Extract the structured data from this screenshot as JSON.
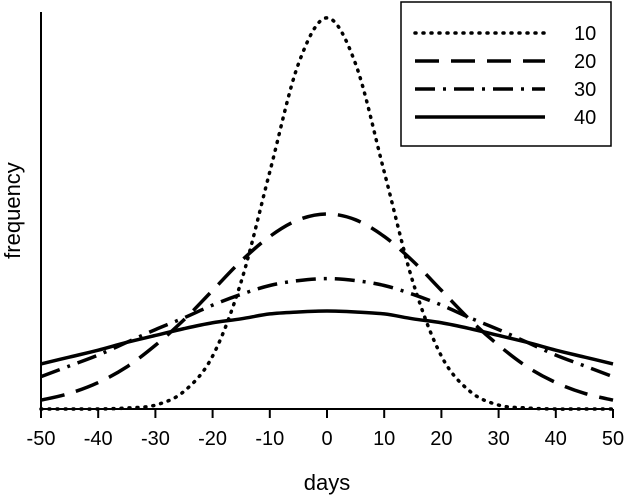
{
  "chart_data": {
    "type": "line",
    "title": "",
    "xlabel": "days",
    "ylabel": "frequency",
    "xlim": [
      -50,
      50
    ],
    "xticks": [
      -50,
      -40,
      -30,
      -20,
      -10,
      0,
      10,
      20,
      30,
      40,
      50
    ],
    "ylim": [
      0,
      0.0405
    ],
    "yticks_shown": false,
    "grid": false,
    "legend": "top-right",
    "x": [
      -50,
      -45,
      -40,
      -35,
      -30,
      -25,
      -20,
      -15,
      -10,
      -5,
      0,
      5,
      10,
      15,
      20,
      25,
      30,
      35,
      40,
      45,
      50
    ],
    "series": [
      {
        "name": "10",
        "style": "dotted",
        "values": [
          0.0,
          0.0,
          0.0,
          0.0001,
          0.0004,
          0.0018,
          0.0054,
          0.013,
          0.0242,
          0.0352,
          0.0399,
          0.0352,
          0.0242,
          0.013,
          0.0054,
          0.0018,
          0.0004,
          0.0001,
          0.0,
          0.0,
          0.0
        ]
      },
      {
        "name": "20",
        "style": "dashed",
        "values": [
          0.0009,
          0.0016,
          0.0027,
          0.0043,
          0.0065,
          0.0091,
          0.0121,
          0.0151,
          0.0176,
          0.0193,
          0.0199,
          0.0193,
          0.0176,
          0.0151,
          0.0121,
          0.0091,
          0.0065,
          0.0043,
          0.0027,
          0.0016,
          0.0009
        ]
      },
      {
        "name": "30",
        "style": "dash-dot",
        "values": [
          0.0033,
          0.0044,
          0.0055,
          0.0068,
          0.0081,
          0.0093,
          0.0106,
          0.0117,
          0.0126,
          0.0131,
          0.0133,
          0.0131,
          0.0126,
          0.0117,
          0.0106,
          0.0093,
          0.0081,
          0.0068,
          0.0055,
          0.0044,
          0.0033
        ]
      },
      {
        "name": "40",
        "style": "solid",
        "values": [
          0.0046,
          0.0053,
          0.006,
          0.0068,
          0.0075,
          0.0082,
          0.0088,
          0.0092,
          0.0097,
          0.0099,
          0.01,
          0.0099,
          0.0097,
          0.0092,
          0.0088,
          0.0082,
          0.0075,
          0.0068,
          0.006,
          0.0053,
          0.0046
        ]
      }
    ]
  }
}
